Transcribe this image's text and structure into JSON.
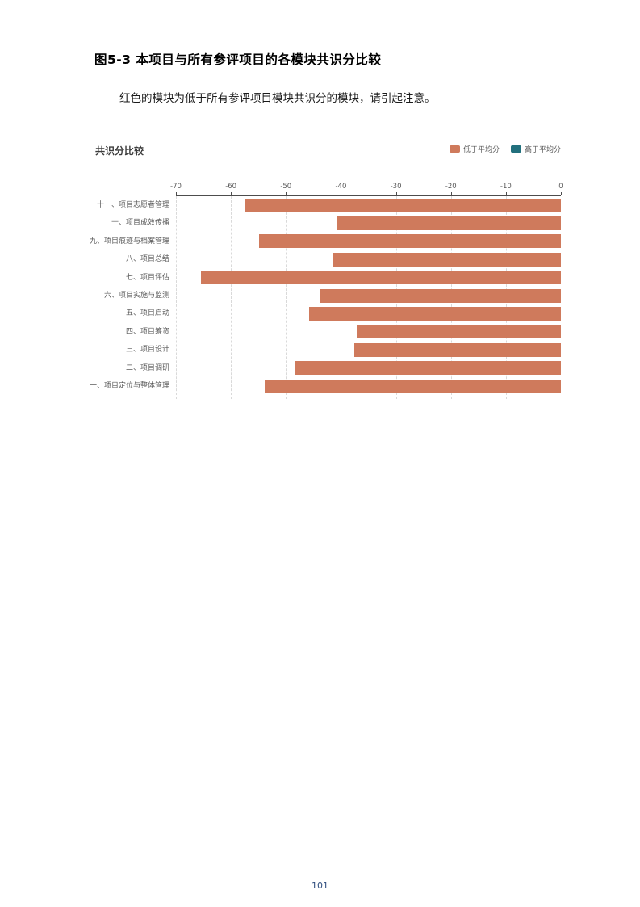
{
  "figure": {
    "title": "图5-3 本项目与所有参评项目的各模块共识分比较",
    "note": "红色的模块为低于所有参评项目模块共识分的模块，请引起注意。"
  },
  "page": {
    "number": "101"
  },
  "chart_data": {
    "type": "bar",
    "orientation": "horizontal",
    "title": "共识分比较",
    "series_name": "低于平均分",
    "categories": [
      "十一、项目志愿者管理",
      "十、项目成效传播",
      "九、项目痕迹与档案管理",
      "八、项目总结",
      "七、项目评估",
      "六、项目实施与监测",
      "五、项目启动",
      "四、项目筹资",
      "三、项目设计",
      "二、项目调研",
      "一、项目定位与整体管理"
    ],
    "values": [
      -57.5,
      -40.6,
      -54.9,
      -41.5,
      -65.5,
      -43.8,
      -45.8,
      -37.2,
      -37.5,
      -48.3,
      -53.8
    ],
    "xlim": [
      -70,
      0
    ],
    "tick_labels": [
      "-70",
      "-60",
      "-50",
      "-40",
      "-30",
      "-20",
      "-10",
      "0"
    ],
    "grid": true,
    "legend_position": "top-right",
    "legend": [
      {
        "label": "低于平均分",
        "color": "#cf7a5c"
      },
      {
        "label": "高于平均分",
        "color": "#22707d"
      }
    ],
    "bar_color": "#cf7a5c"
  }
}
